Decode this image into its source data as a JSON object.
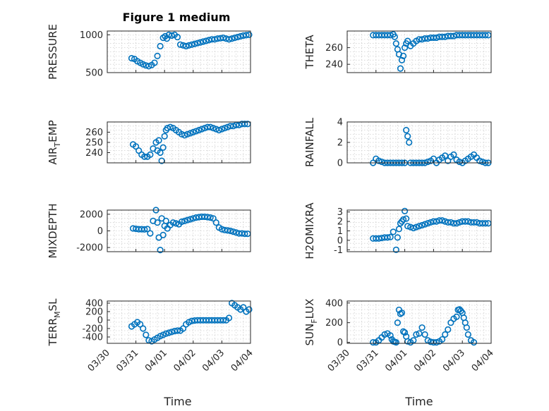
{
  "figure": {
    "title": "Figure 1 medium"
  },
  "chart_data": [
    {
      "type": "scatter",
      "title": "Figure 1 medium",
      "ylabel": "PRESSURE",
      "ylim": [
        500,
        1050
      ],
      "yticks": [
        500,
        1000
      ],
      "xlabel": "",
      "x": [
        0.85,
        0.95,
        1.05,
        1.15,
        1.25,
        1.35,
        1.45,
        1.55,
        1.65,
        1.75,
        1.85,
        1.95,
        2.02,
        2.08,
        2.15,
        2.25,
        2.35,
        2.45,
        2.55,
        2.65,
        2.75,
        2.85,
        2.95,
        3.05,
        3.15,
        3.25,
        3.35,
        3.45,
        3.55,
        3.65,
        3.75,
        3.85,
        3.95,
        4.05,
        4.15,
        4.25,
        4.35,
        4.45,
        4.55,
        4.65,
        4.75,
        4.85,
        4.95
      ],
      "y": [
        690,
        680,
        650,
        630,
        610,
        595,
        585,
        600,
        630,
        720,
        850,
        960,
        980,
        950,
        1000,
        990,
        1000,
        970,
        870,
        860,
        850,
        860,
        870,
        880,
        890,
        900,
        910,
        920,
        930,
        940,
        940,
        950,
        955,
        960,
        950,
        940,
        950,
        960,
        970,
        980,
        990,
        995,
        1000
      ]
    },
    {
      "type": "scatter",
      "ylabel": "THETA",
      "ylim": [
        230,
        280
      ],
      "yticks": [
        240,
        260
      ],
      "x": [
        0.9,
        1.0,
        1.1,
        1.2,
        1.3,
        1.4,
        1.5,
        1.6,
        1.65,
        1.7,
        1.75,
        1.8,
        1.85,
        1.9,
        1.95,
        2.0,
        2.05,
        2.1,
        2.2,
        2.3,
        2.4,
        2.5,
        2.6,
        2.7,
        2.8,
        2.9,
        3.0,
        3.1,
        3.2,
        3.3,
        3.4,
        3.5,
        3.6,
        3.7,
        3.8,
        3.9,
        4.0,
        4.1,
        4.2,
        4.3,
        4.4,
        4.5,
        4.6,
        4.7,
        4.8,
        4.9
      ],
      "y": [
        275,
        275,
        275,
        275,
        275,
        275,
        275,
        276,
        273,
        265,
        258,
        252,
        235,
        245,
        250,
        260,
        265,
        268,
        262,
        265,
        268,
        270,
        270,
        271,
        271,
        272,
        272,
        272,
        273,
        273,
        273,
        274,
        274,
        274,
        275,
        275,
        275,
        275,
        275,
        275,
        275,
        275,
        275,
        275,
        275,
        275
      ]
    },
    {
      "type": "scatter",
      "ylabel": "AIR_TEMP",
      "ylim": [
        230,
        270
      ],
      "yticks": [
        240,
        250,
        260
      ],
      "x": [
        0.9,
        1.0,
        1.1,
        1.2,
        1.3,
        1.4,
        1.5,
        1.6,
        1.7,
        1.75,
        1.8,
        1.85,
        1.9,
        1.95,
        2.0,
        2.05,
        2.1,
        2.2,
        2.3,
        2.4,
        2.5,
        2.6,
        2.7,
        2.8,
        2.9,
        3.0,
        3.1,
        3.2,
        3.3,
        3.4,
        3.5,
        3.6,
        3.7,
        3.8,
        3.9,
        4.0,
        4.1,
        4.2,
        4.3,
        4.4,
        4.5,
        4.6,
        4.7,
        4.8,
        4.9
      ],
      "y": [
        248,
        246,
        242,
        238,
        236,
        236,
        238,
        244,
        250,
        242,
        252,
        240,
        232,
        245,
        256,
        262,
        264,
        265,
        264,
        262,
        260,
        258,
        257,
        258,
        259,
        260,
        261,
        262,
        263,
        264,
        265,
        265,
        264,
        263,
        262,
        263,
        264,
        265,
        266,
        266,
        267,
        267,
        268,
        268,
        268
      ]
    },
    {
      "type": "scatter",
      "ylabel": "RAINFALL",
      "ylim": [
        0,
        4
      ],
      "yticks": [
        0,
        2,
        4
      ],
      "x": [
        0.9,
        1.0,
        1.1,
        1.2,
        1.3,
        1.4,
        1.5,
        1.6,
        1.7,
        1.8,
        1.9,
        2.0,
        2.05,
        2.1,
        2.15,
        2.2,
        2.3,
        2.4,
        2.5,
        2.6,
        2.7,
        2.8,
        2.9,
        3.0,
        3.1,
        3.2,
        3.3,
        3.4,
        3.5,
        3.6,
        3.7,
        3.8,
        3.9,
        4.0,
        4.1,
        4.2,
        4.3,
        4.4,
        4.5,
        4.6,
        4.7,
        4.8,
        4.9
      ],
      "y": [
        0,
        0.4,
        0.2,
        0.1,
        0,
        0,
        0,
        0,
        0,
        0,
        0,
        0,
        3.2,
        2.6,
        2.0,
        0,
        0,
        0,
        0,
        0,
        0,
        0.1,
        0.2,
        0.4,
        0,
        0.3,
        0.5,
        0.7,
        0.2,
        0.6,
        0.8,
        0.3,
        0.1,
        0,
        0.2,
        0.4,
        0.6,
        0.8,
        0.5,
        0.2,
        0.1,
        0,
        0
      ]
    },
    {
      "type": "scatter",
      "ylabel": "MIXDEPTH",
      "ylim": [
        -2500,
        2500
      ],
      "yticks": [
        -2000,
        0,
        2000
      ],
      "x": [
        0.9,
        1.0,
        1.1,
        1.2,
        1.3,
        1.4,
        1.5,
        1.6,
        1.7,
        1.75,
        1.8,
        1.85,
        1.9,
        1.95,
        2.0,
        2.05,
        2.1,
        2.2,
        2.3,
        2.4,
        2.5,
        2.6,
        2.7,
        2.8,
        2.9,
        3.0,
        3.1,
        3.2,
        3.3,
        3.4,
        3.5,
        3.6,
        3.7,
        3.8,
        3.9,
        4.0,
        4.1,
        4.2,
        4.3,
        4.4,
        4.5,
        4.6,
        4.7,
        4.8,
        4.9
      ],
      "y": [
        300,
        250,
        200,
        200,
        180,
        220,
        -300,
        1200,
        2500,
        1000,
        -800,
        -2300,
        1500,
        -500,
        600,
        1200,
        300,
        700,
        1000,
        900,
        800,
        1100,
        1200,
        1300,
        1400,
        1500,
        1600,
        1650,
        1700,
        1700,
        1650,
        1600,
        1500,
        1000,
        400,
        200,
        100,
        50,
        0,
        -100,
        -200,
        -300,
        -300,
        -350,
        -350
      ]
    },
    {
      "type": "scatter",
      "ylabel": "H2OMIXRA",
      "ylim": [
        -1.2,
        3.2
      ],
      "yticks": [
        -1,
        0,
        1,
        2,
        3
      ],
      "x": [
        0.9,
        1.0,
        1.1,
        1.2,
        1.3,
        1.4,
        1.5,
        1.6,
        1.7,
        1.75,
        1.8,
        1.85,
        1.9,
        1.95,
        2.0,
        2.05,
        2.1,
        2.2,
        2.3,
        2.4,
        2.5,
        2.6,
        2.7,
        2.8,
        2.9,
        3.0,
        3.1,
        3.2,
        3.3,
        3.4,
        3.5,
        3.6,
        3.7,
        3.8,
        3.9,
        4.0,
        4.1,
        4.2,
        4.3,
        4.4,
        4.5,
        4.6,
        4.7,
        4.8,
        4.9
      ],
      "y": [
        0.2,
        0.2,
        0.2,
        0.25,
        0.3,
        0.3,
        0.35,
        0.9,
        -1.0,
        0.3,
        1.2,
        1.8,
        2.0,
        2.2,
        3.1,
        2.3,
        1.5,
        1.4,
        1.3,
        1.4,
        1.5,
        1.6,
        1.7,
        1.8,
        1.9,
        2.0,
        2.0,
        2.1,
        2.1,
        2.0,
        1.9,
        1.9,
        1.8,
        1.8,
        1.9,
        2.0,
        2.0,
        2.0,
        1.9,
        1.9,
        1.9,
        1.8,
        1.8,
        1.8,
        1.8
      ]
    },
    {
      "type": "scatter",
      "ylabel": "TERR_MSL",
      "ylim": [
        -550,
        450
      ],
      "yticks": [
        -400,
        -200,
        0,
        200,
        400
      ],
      "x": [
        0.85,
        0.95,
        1.05,
        1.15,
        1.25,
        1.35,
        1.45,
        1.55,
        1.65,
        1.75,
        1.85,
        1.95,
        2.05,
        2.15,
        2.25,
        2.35,
        2.45,
        2.55,
        2.65,
        2.75,
        2.85,
        2.95,
        3.05,
        3.15,
        3.25,
        3.35,
        3.45,
        3.55,
        3.65,
        3.75,
        3.85,
        3.95,
        4.05,
        4.15,
        4.25,
        4.35,
        4.45,
        4.55,
        4.65,
        4.75,
        4.85,
        4.95
      ],
      "y": [
        -150,
        -100,
        -50,
        -100,
        -200,
        -350,
        -480,
        -500,
        -460,
        -420,
        -380,
        -350,
        -320,
        -300,
        -280,
        -260,
        -250,
        -250,
        -200,
        -100,
        -50,
        -20,
        -10,
        -5,
        -5,
        -5,
        -5,
        -5,
        -5,
        -5,
        -5,
        -5,
        -5,
        -5,
        50,
        400,
        350,
        300,
        250,
        300,
        200,
        250
      ]
    },
    {
      "type": "scatter",
      "ylabel": "SUN_FLUX",
      "ylim": [
        -10,
        420
      ],
      "yticks": [
        0,
        200,
        400
      ],
      "x": [
        0.9,
        1.0,
        1.1,
        1.2,
        1.3,
        1.4,
        1.5,
        1.55,
        1.6,
        1.65,
        1.7,
        1.75,
        1.8,
        1.85,
        1.9,
        1.95,
        2.0,
        2.05,
        2.1,
        2.2,
        2.3,
        2.4,
        2.5,
        2.6,
        2.7,
        2.8,
        2.9,
        3.0,
        3.1,
        3.2,
        3.3,
        3.4,
        3.5,
        3.6,
        3.7,
        3.8,
        3.85,
        3.9,
        3.95,
        4.0,
        4.05,
        4.1,
        4.15,
        4.2,
        4.3,
        4.4
      ],
      "y": [
        0,
        0,
        20,
        50,
        80,
        90,
        70,
        30,
        10,
        5,
        0,
        200,
        330,
        290,
        300,
        110,
        100,
        60,
        10,
        0,
        20,
        80,
        90,
        150,
        80,
        20,
        5,
        0,
        0,
        10,
        30,
        80,
        130,
        200,
        240,
        260,
        330,
        335,
        320,
        300,
        250,
        200,
        150,
        80,
        20,
        0
      ]
    }
  ],
  "x_axis": {
    "ticks": [
      "03/30",
      "03/31",
      "04/01",
      "04/02",
      "04/03",
      "04/04"
    ],
    "label": "Time"
  }
}
